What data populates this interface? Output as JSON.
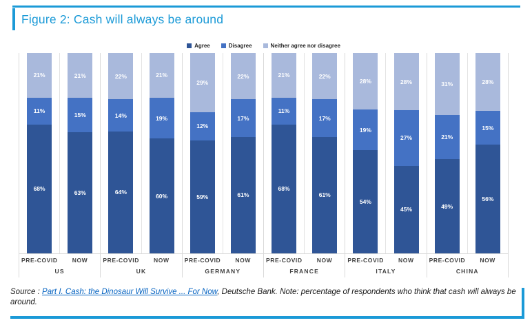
{
  "accent_color": "#1b9ad7",
  "title": "Figure 2: Cash will always be around",
  "chart_data": {
    "type": "bar",
    "variant": "100%-stacked-column",
    "title": "Figure 2: Cash will always be around",
    "unit": "%",
    "legend_position": "top-center",
    "grid": false,
    "ylim": [
      0,
      100
    ],
    "series": [
      {
        "name": "Agree",
        "color": "#2f5596"
      },
      {
        "name": "Disagree",
        "color": "#4472c4"
      },
      {
        "name": "Neither agree nor disagree",
        "color": "#a9b9dc"
      }
    ],
    "groups": [
      {
        "country": "US",
        "bars": [
          {
            "label": "PRE-COVID",
            "values": {
              "agree": 68,
              "disagree": 11,
              "neither": 21
            }
          },
          {
            "label": "NOW",
            "values": {
              "agree": 63,
              "disagree": 15,
              "neither": 21
            }
          }
        ]
      },
      {
        "country": "UK",
        "bars": [
          {
            "label": "PRE-COVID",
            "values": {
              "agree": 64,
              "disagree": 14,
              "neither": 22
            }
          },
          {
            "label": "NOW",
            "values": {
              "agree": 60,
              "disagree": 19,
              "neither": 21
            }
          }
        ]
      },
      {
        "country": "GERMANY",
        "bars": [
          {
            "label": "PRE-COVID",
            "values": {
              "agree": 59,
              "disagree": 12,
              "neither": 29
            }
          },
          {
            "label": "NOW",
            "values": {
              "agree": 61,
              "disagree": 17,
              "neither": 22
            }
          }
        ]
      },
      {
        "country": "FRANCE",
        "bars": [
          {
            "label": "PRE-COVID",
            "values": {
              "agree": 68,
              "disagree": 11,
              "neither": 21
            }
          },
          {
            "label": "NOW",
            "values": {
              "agree": 61,
              "disagree": 17,
              "neither": 22
            }
          }
        ]
      },
      {
        "country": "ITALY",
        "bars": [
          {
            "label": "PRE-COVID",
            "values": {
              "agree": 54,
              "disagree": 19,
              "neither": 28
            }
          },
          {
            "label": "NOW",
            "values": {
              "agree": 45,
              "disagree": 27,
              "neither": 28
            }
          }
        ]
      },
      {
        "country": "CHINA",
        "bars": [
          {
            "label": "PRE-COVID",
            "values": {
              "agree": 49,
              "disagree": 21,
              "neither": 31
            }
          },
          {
            "label": "NOW",
            "values": {
              "agree": 56,
              "disagree": 15,
              "neither": 28
            }
          }
        ]
      }
    ]
  },
  "footer": {
    "prefix": "Source : ",
    "link_text": "Part I. Cash: the Dinosaur Will Survive ... For Now",
    "suffix": ", Deutsche Bank. Note: percentage of respondents who think that cash will always be around."
  }
}
